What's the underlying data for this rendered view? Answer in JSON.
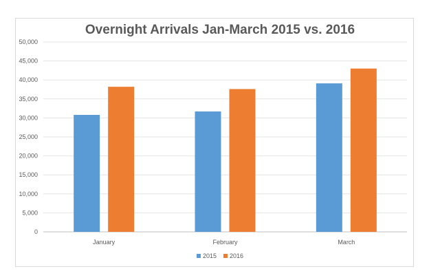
{
  "chart_data": {
    "type": "bar",
    "title": "Overnight Arrivals Jan-March 2015 vs. 2016",
    "xlabel": "",
    "ylabel": "",
    "categories": [
      "January",
      "February",
      "March"
    ],
    "series": [
      {
        "name": "2015",
        "values": [
          30800,
          31700,
          39100
        ],
        "color": "#5b9bd5"
      },
      {
        "name": "2016",
        "values": [
          38200,
          37600,
          43000
        ],
        "color": "#ed7d31"
      }
    ],
    "ylim": [
      0,
      50000
    ],
    "yticks": [
      "0",
      "5,000",
      "10,000",
      "15,000",
      "20,000",
      "25,000",
      "30,000",
      "35,000",
      "40,000",
      "45,000",
      "50,000"
    ],
    "grid": true,
    "legend_position": "bottom"
  }
}
